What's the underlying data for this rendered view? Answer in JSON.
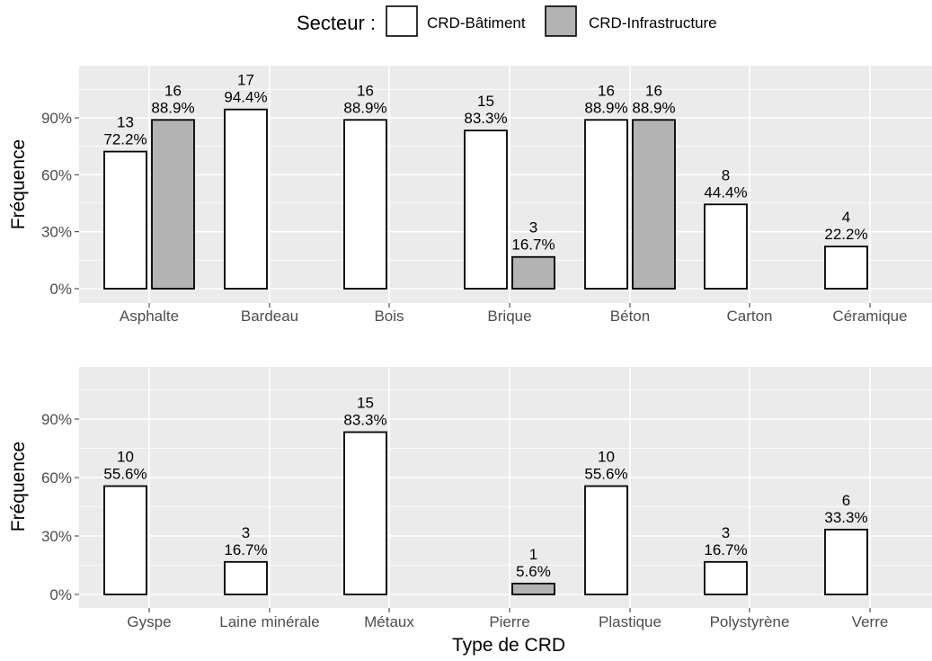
{
  "legend": {
    "title": "Secteur :",
    "items": [
      {
        "label": "CRD-Bâtiment",
        "color": "#ffffff"
      },
      {
        "label": "CRD-Infrastructure",
        "color": "#b3b3b3"
      }
    ]
  },
  "colors": {
    "panel_bg": "#ebebeb",
    "grid": "#ffffff",
    "bar_outline": "#000000",
    "axis_text": "#4d4d4d"
  },
  "chart_data": [
    {
      "type": "bar",
      "ylabel": "Fréquence",
      "xlabel": "",
      "ylim": [
        0,
        1.15
      ],
      "yticks": [
        0,
        0.3,
        0.6,
        0.9
      ],
      "ytick_labels": [
        "0%",
        "30%",
        "60%",
        "90%"
      ],
      "categories": [
        "Asphalte",
        "Bardeau",
        "Bois",
        "Brique",
        "Béton",
        "Carton",
        "Céramique"
      ],
      "series": [
        {
          "name": "CRD-Bâtiment",
          "counts": [
            13,
            17,
            16,
            15,
            16,
            8,
            4
          ],
          "values": [
            0.722,
            0.944,
            0.889,
            0.833,
            0.889,
            0.444,
            0.222
          ],
          "labels": [
            "72.2%",
            "94.4%",
            "88.9%",
            "83.3%",
            "88.9%",
            "44.4%",
            "22.2%"
          ]
        },
        {
          "name": "CRD-Infrastructure",
          "counts": [
            16,
            null,
            null,
            3,
            16,
            null,
            null
          ],
          "values": [
            0.889,
            null,
            null,
            0.167,
            0.889,
            null,
            null
          ],
          "labels": [
            "88.9%",
            null,
            null,
            "16.7%",
            "88.9%",
            null,
            null
          ]
        }
      ]
    },
    {
      "type": "bar",
      "ylabel": "Fréquence",
      "xlabel": "Type de CRD",
      "ylim": [
        0,
        1.15
      ],
      "yticks": [
        0,
        0.3,
        0.6,
        0.9
      ],
      "ytick_labels": [
        "0%",
        "30%",
        "60%",
        "90%"
      ],
      "categories": [
        "Gyspe",
        "Laine minérale",
        "Métaux",
        "Pierre",
        "Plastique",
        "Polystyrène",
        "Verre"
      ],
      "series": [
        {
          "name": "CRD-Bâtiment",
          "counts": [
            10,
            3,
            15,
            null,
            10,
            3,
            6
          ],
          "values": [
            0.556,
            0.167,
            0.833,
            null,
            0.556,
            0.167,
            0.333
          ],
          "labels": [
            "55.6%",
            "16.7%",
            "83.3%",
            null,
            "55.6%",
            "16.7%",
            "33.3%"
          ]
        },
        {
          "name": "CRD-Infrastructure",
          "counts": [
            null,
            null,
            null,
            1,
            null,
            null,
            null
          ],
          "values": [
            null,
            null,
            null,
            0.056,
            null,
            null,
            null
          ],
          "labels": [
            null,
            null,
            null,
            "5.6%",
            null,
            null,
            null
          ]
        }
      ]
    }
  ]
}
